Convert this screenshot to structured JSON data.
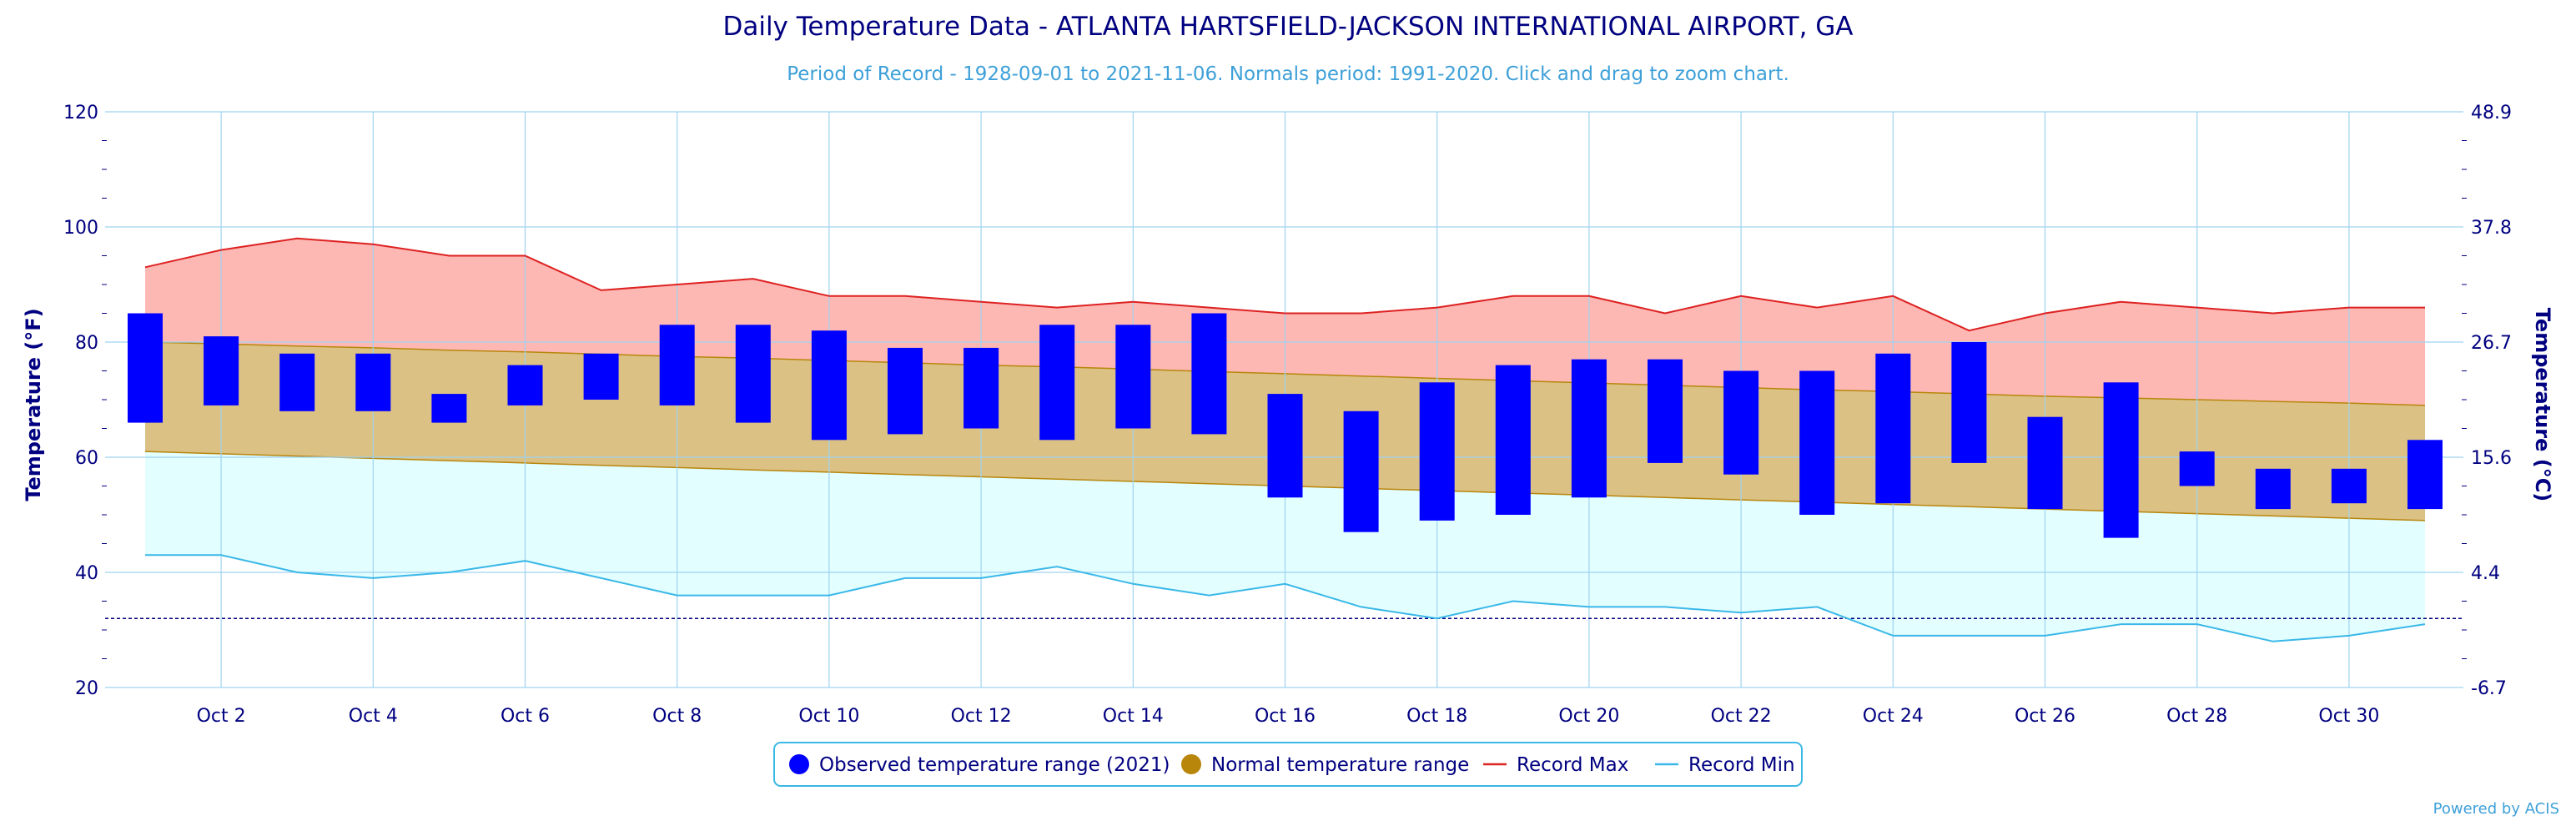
{
  "chart_data": {
    "type": "bar",
    "title": "Daily Temperature Data - ATLANTA HARTSFIELD-JACKSON INTERNATIONAL AIRPORT, GA",
    "subtitle": "Period of Record - 1928-09-01 to 2021-11-06. Normals period: 1991-2020. Click and drag to zoom chart.",
    "ylabel_left": "Temperature (°F)",
    "ylabel_right": "Temperature (°C)",
    "ylim": [
      20,
      120
    ],
    "y_ticks_left": [
      "20",
      "40",
      "60",
      "80",
      "100",
      "120"
    ],
    "y_ticks_right": [
      "-6.7",
      "4.4",
      "15.6",
      "26.7",
      "37.8",
      "48.9"
    ],
    "freezing_line": 32,
    "days": [
      1,
      2,
      3,
      4,
      5,
      6,
      7,
      8,
      9,
      10,
      11,
      12,
      13,
      14,
      15,
      16,
      17,
      18,
      19,
      20,
      21,
      22,
      23,
      24,
      25,
      26,
      27,
      28,
      29,
      30,
      31
    ],
    "x_tick_labels": [
      {
        "day": 2,
        "label": "Oct 2"
      },
      {
        "day": 4,
        "label": "Oct 4"
      },
      {
        "day": 6,
        "label": "Oct 6"
      },
      {
        "day": 8,
        "label": "Oct 8"
      },
      {
        "day": 10,
        "label": "Oct 10"
      },
      {
        "day": 12,
        "label": "Oct 12"
      },
      {
        "day": 14,
        "label": "Oct 14"
      },
      {
        "day": 16,
        "label": "Oct 16"
      },
      {
        "day": 18,
        "label": "Oct 18"
      },
      {
        "day": 20,
        "label": "Oct 20"
      },
      {
        "day": 22,
        "label": "Oct 22"
      },
      {
        "day": 24,
        "label": "Oct 24"
      },
      {
        "day": 26,
        "label": "Oct 26"
      },
      {
        "day": 28,
        "label": "Oct 28"
      },
      {
        "day": 30,
        "label": "Oct 30"
      }
    ],
    "series": [
      {
        "name": "Observed temperature range (2021)",
        "color": "#0000ff",
        "low": [
          66,
          69,
          68,
          68,
          66,
          69,
          70,
          69,
          66,
          63,
          64,
          65,
          63,
          65,
          64,
          53,
          47,
          49,
          50,
          53,
          59,
          57,
          50,
          52,
          59,
          51,
          46,
          55,
          51,
          52,
          51
        ],
        "high": [
          85,
          81,
          78,
          78,
          71,
          76,
          78,
          83,
          83,
          82,
          79,
          79,
          83,
          83,
          85,
          71,
          68,
          73,
          76,
          77,
          77,
          75,
          75,
          78,
          80,
          67,
          73,
          61,
          58,
          58,
          63
        ]
      },
      {
        "name": "Normal temperature range",
        "color": "#b8860b",
        "low": [
          61,
          60.6,
          60.2,
          59.8,
          59.4,
          59,
          58.6,
          58.2,
          57.8,
          57.4,
          57,
          56.6,
          56.2,
          55.8,
          55.4,
          55,
          54.6,
          54.2,
          53.8,
          53.4,
          53,
          52.6,
          52.2,
          51.8,
          51.4,
          51,
          50.6,
          50.2,
          49.8,
          49.4,
          49
        ],
        "high": [
          80,
          79.7,
          79.3,
          79,
          78.6,
          78.3,
          77.9,
          77.5,
          77.2,
          76.8,
          76.4,
          76,
          75.7,
          75.3,
          74.9,
          74.5,
          74.1,
          73.7,
          73.3,
          72.9,
          72.5,
          72.1,
          71.7,
          71.4,
          71,
          70.6,
          70.3,
          70,
          69.7,
          69.4,
          69
        ]
      },
      {
        "name": "Record Max",
        "color": "#dd2222",
        "values": [
          93,
          96,
          98,
          97,
          95,
          95,
          89,
          90,
          91,
          88,
          88,
          87,
          86,
          87,
          86,
          85,
          85,
          86,
          88,
          88,
          85,
          88,
          86,
          88,
          82,
          85,
          87,
          86,
          85,
          86,
          86
        ]
      },
      {
        "name": "Record Min",
        "color": "#3ab8e8",
        "values": [
          43,
          43,
          40,
          39,
          40,
          42,
          39,
          36,
          36,
          36,
          39,
          39,
          41,
          38,
          36,
          38,
          34,
          32,
          35,
          34,
          34,
          33,
          34,
          29,
          29,
          29,
          31,
          31,
          28,
          29,
          31
        ]
      }
    ],
    "legend_position": "bottom-center"
  },
  "credit": "Powered by ACIS"
}
